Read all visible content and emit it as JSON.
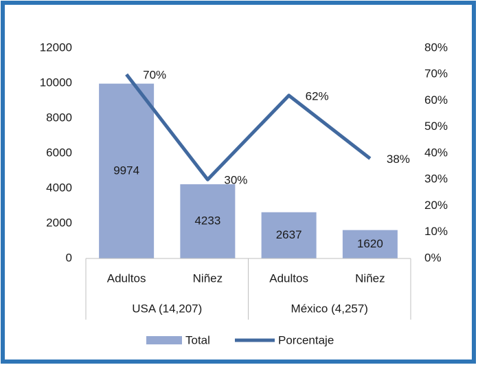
{
  "chart_data": {
    "type": "bar",
    "groups": [
      {
        "name": "USA  (14,207)",
        "categories": [
          "Adultos",
          "Niñez"
        ]
      },
      {
        "name": "México (4,257)",
        "categories": [
          "Adultos",
          "Niñez"
        ]
      }
    ],
    "series": [
      {
        "name": "Total",
        "type": "bar",
        "color": "#95a8d2",
        "values": [
          9974,
          4233,
          2637,
          1620
        ]
      },
      {
        "name": "Porcentaje",
        "type": "line",
        "axis": "y2",
        "color": "#41699f",
        "values": [
          70,
          30,
          62,
          38
        ],
        "value_labels": [
          "70%",
          "30%",
          "62%",
          "38%"
        ]
      }
    ],
    "ylim": [
      0,
      12000
    ],
    "yticks": [
      0,
      2000,
      4000,
      6000,
      8000,
      10000,
      12000
    ],
    "y2lim": [
      0,
      80
    ],
    "y2ticks": [
      {
        "value": 0,
        "label": "0%"
      },
      {
        "value": 10,
        "label": "10%"
      },
      {
        "value": 20,
        "label": "20%"
      },
      {
        "value": 30,
        "label": "30%"
      },
      {
        "value": 40,
        "label": "40%"
      },
      {
        "value": 50,
        "label": "50%"
      },
      {
        "value": 60,
        "label": "60%"
      },
      {
        "value": 70,
        "label": "70%"
      },
      {
        "value": 80,
        "label": "80%"
      }
    ],
    "legend": "bottom"
  }
}
